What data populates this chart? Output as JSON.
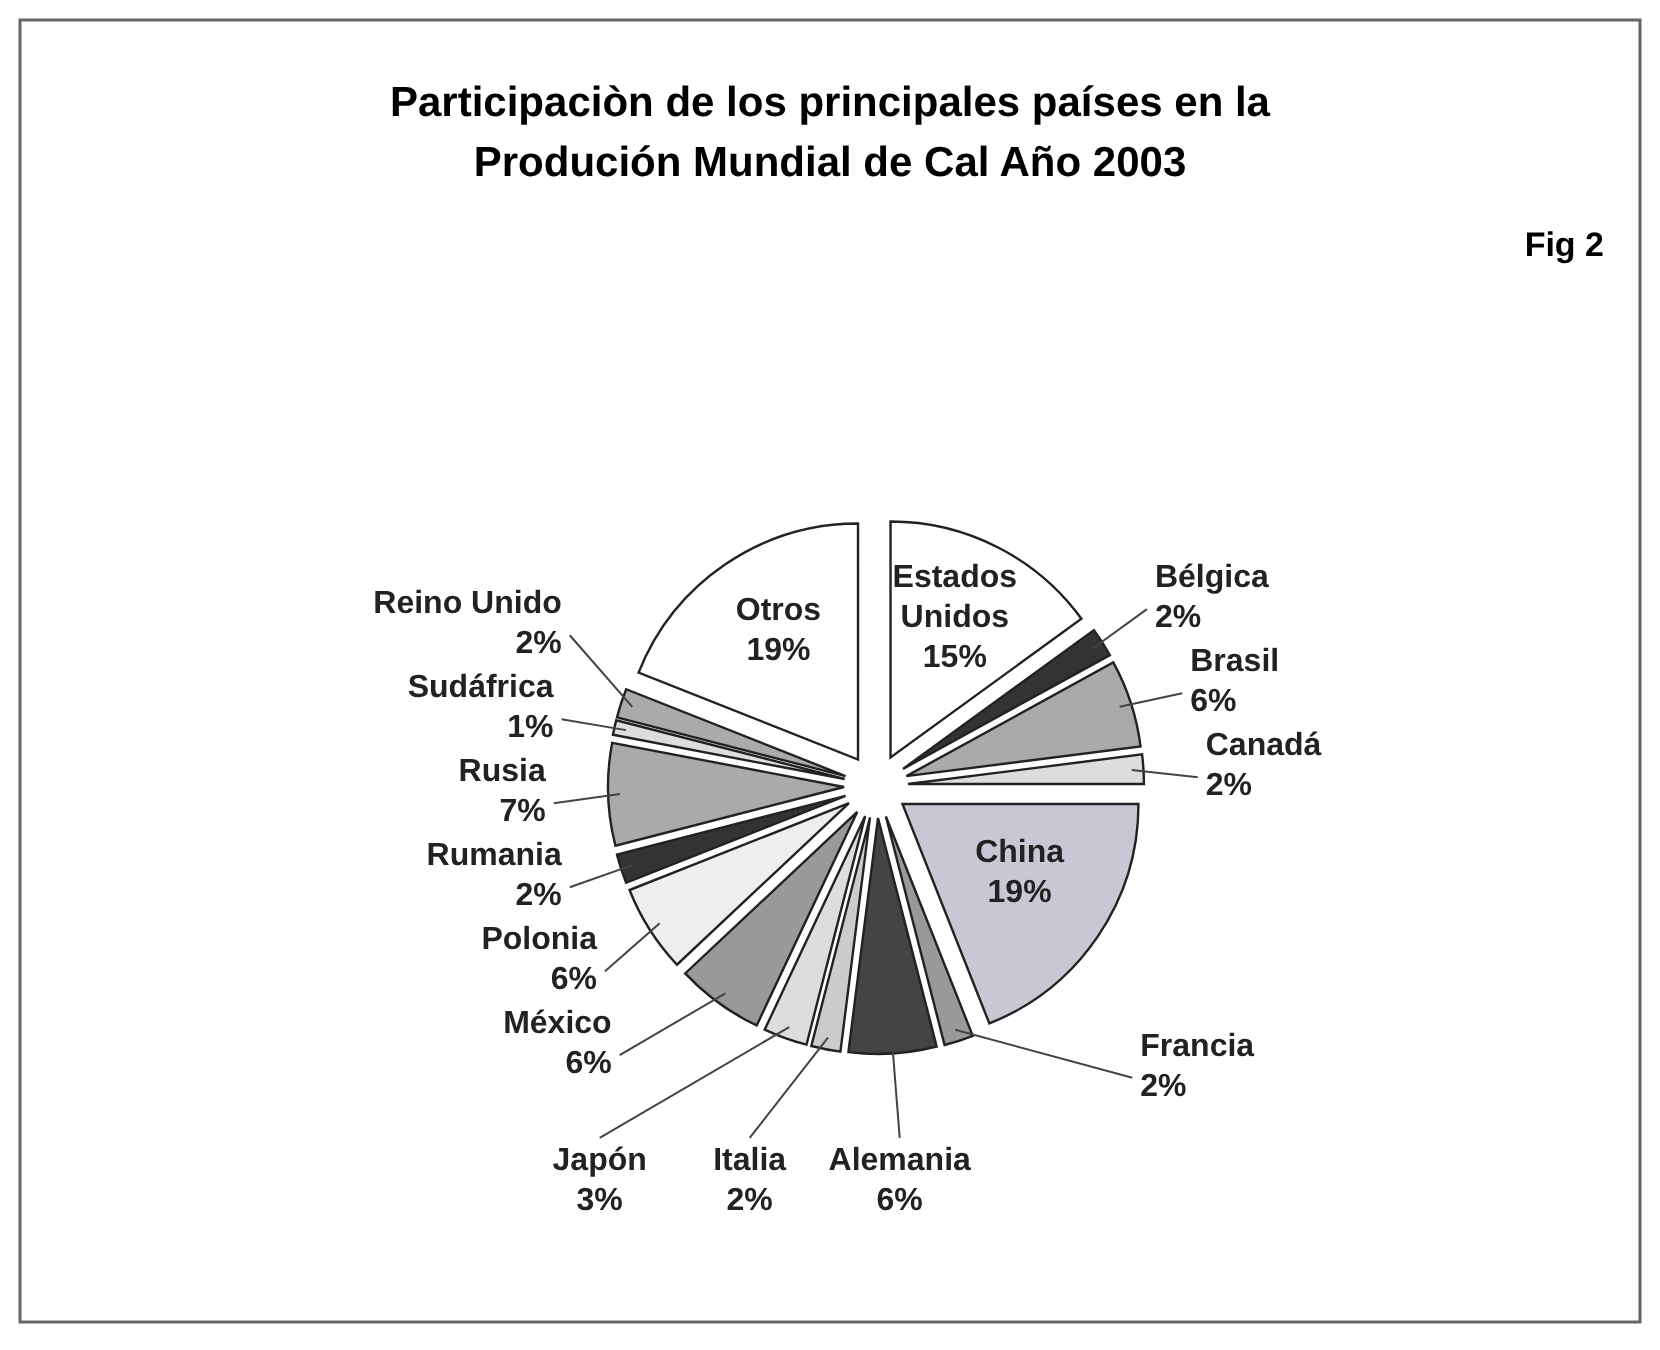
{
  "chart_data": {
    "type": "pie",
    "title": "Participaciòn de los principales países en la Produción Mundial de Cal Año 2003",
    "categories": [
      "Estados Unidos",
      "Bélgica",
      "Brasil",
      "Canadá",
      "China",
      "Francia",
      "Alemania",
      "Italia",
      "Japón",
      "México",
      "Polonia",
      "Rumania",
      "Rusia",
      "Sudáfrica",
      "Reino Unido",
      "Otros"
    ],
    "values": [
      15,
      2,
      6,
      2,
      19,
      2,
      6,
      2,
      3,
      6,
      6,
      2,
      7,
      1,
      2,
      19
    ],
    "value_labels": [
      "15%",
      "2%",
      "6%",
      "2%",
      "19%",
      "2%",
      "6%",
      "2%",
      "3%",
      "6%",
      "6%",
      "2%",
      "7%",
      "1%",
      "2%",
      "19%"
    ],
    "colors": [
      "#ffffff",
      "#333333",
      "#aaaaaa",
      "#dddddd",
      "#c8c8d4",
      "#999999",
      "#444444",
      "#cccccc",
      "#dddddd",
      "#999999",
      "#eeeeee",
      "#333333",
      "#aaaaaa",
      "#dddddd",
      "#aaaaaa",
      "#ffffff"
    ],
    "annotations": [
      "Fig 2"
    ]
  }
}
